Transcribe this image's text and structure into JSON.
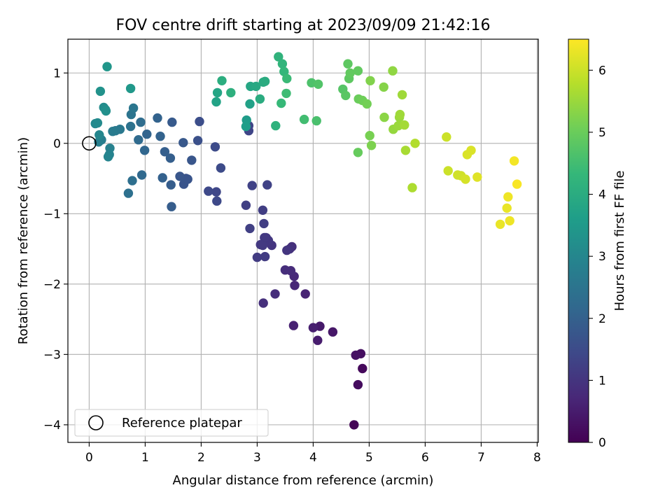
{
  "chart_data": {
    "type": "scatter",
    "title": "FOV centre drift starting at 2023/09/09 21:42:16",
    "xlabel": "Angular distance from reference (arcmin)",
    "ylabel": "Rotation from reference (arcmin)",
    "xlim": [
      -0.38,
      8.02
    ],
    "ylim": [
      -4.25,
      1.48
    ],
    "xticks": [
      0,
      1,
      2,
      3,
      4,
      5,
      6,
      7,
      8
    ],
    "xtick_labels": [
      "0",
      "1",
      "2",
      "3",
      "4",
      "5",
      "6",
      "7",
      "8"
    ],
    "yticks": [
      1,
      0,
      -1,
      -2,
      -3,
      -4
    ],
    "ytick_labels": [
      "1",
      "0",
      "−1",
      "−2",
      "−3",
      "−4"
    ],
    "grid": true,
    "colormap": "viridis",
    "colors": {
      "viridis": [
        "#440154",
        "#482878",
        "#3e4989",
        "#31688e",
        "#26828e",
        "#1f9e89",
        "#35b779",
        "#6ece58",
        "#b5de2b",
        "#fde725"
      ]
    },
    "colorbar": {
      "label": "Hours from first FF file",
      "min": 0,
      "max": 6.5,
      "ticks": [
        0,
        1,
        2,
        3,
        4,
        5,
        6
      ],
      "tick_labels": [
        "0",
        "1",
        "2",
        "3",
        "4",
        "5",
        "6"
      ]
    },
    "legend": {
      "placement": "lower-left",
      "entries": [
        "Reference platepar"
      ]
    },
    "reference_point": {
      "x": 0,
      "y": 0
    },
    "series": [
      {
        "points": [
          [
            4.73,
            -4.0,
            0.05
          ],
          [
            4.88,
            -3.2,
            0.15
          ],
          [
            4.8,
            -3.43,
            0.2
          ],
          [
            4.85,
            -2.99,
            0.25
          ],
          [
            4.76,
            -3.01,
            0.3
          ],
          [
            4.35,
            -2.68,
            0.4
          ],
          [
            4.12,
            -2.6,
            0.45
          ],
          [
            4.08,
            -2.8,
            0.5
          ],
          [
            4.0,
            -2.62,
            0.55
          ],
          [
            3.65,
            -2.59,
            0.6
          ],
          [
            3.86,
            -2.14,
            0.65
          ],
          [
            3.67,
            -2.02,
            0.7
          ],
          [
            3.66,
            -1.89,
            0.75
          ],
          [
            3.6,
            -1.81,
            0.8
          ],
          [
            3.5,
            -1.8,
            0.85
          ],
          [
            3.32,
            -2.14,
            0.85
          ],
          [
            3.11,
            -2.27,
            0.9
          ],
          [
            3.62,
            -1.47,
            0.9
          ],
          [
            3.58,
            -1.5,
            0.95
          ],
          [
            3.53,
            -1.52,
            1.0
          ],
          [
            3.26,
            -1.45,
            1.0
          ],
          [
            3.2,
            -1.38,
            1.05
          ],
          [
            3.16,
            -1.34,
            1.05
          ],
          [
            3.13,
            -1.34,
            1.1
          ],
          [
            3.1,
            -1.45,
            1.1
          ],
          [
            3.06,
            -1.44,
            1.1
          ],
          [
            3.14,
            -1.61,
            1.15
          ],
          [
            3.0,
            -1.62,
            1.15
          ],
          [
            3.12,
            -1.14,
            1.2
          ],
          [
            3.1,
            -0.95,
            1.2
          ],
          [
            2.8,
            -0.88,
            1.25
          ],
          [
            2.87,
            -1.21,
            1.25
          ],
          [
            2.91,
            -0.6,
            1.3
          ],
          [
            3.18,
            -0.59,
            1.3
          ],
          [
            2.85,
            0.18,
            1.35
          ],
          [
            2.85,
            0.25,
            1.35
          ],
          [
            2.27,
            -0.69,
            1.4
          ],
          [
            2.13,
            -0.68,
            1.45
          ],
          [
            2.28,
            -0.82,
            1.45
          ],
          [
            2.25,
            -0.05,
            1.5
          ],
          [
            2.35,
            -0.35,
            1.5
          ],
          [
            1.97,
            0.31,
            1.55
          ],
          [
            1.94,
            0.04,
            1.6
          ],
          [
            1.73,
            -0.5,
            1.65
          ],
          [
            1.69,
            -0.58,
            1.7
          ],
          [
            1.76,
            -0.51,
            1.7
          ],
          [
            1.62,
            -0.47,
            1.75
          ],
          [
            1.83,
            -0.24,
            1.75
          ],
          [
            1.68,
            0.01,
            1.8
          ],
          [
            1.48,
            0.3,
            1.85
          ],
          [
            1.47,
            -0.9,
            1.9
          ],
          [
            1.46,
            -0.59,
            1.9
          ],
          [
            1.45,
            -0.21,
            1.95
          ],
          [
            1.35,
            -0.12,
            1.95
          ],
          [
            1.31,
            -0.49,
            2.0
          ],
          [
            1.27,
            0.1,
            2.05
          ],
          [
            1.22,
            0.36,
            2.05
          ],
          [
            1.03,
            0.13,
            2.1
          ],
          [
            0.99,
            -0.1,
            2.15
          ],
          [
            0.94,
            -0.45,
            2.2
          ],
          [
            0.88,
            0.05,
            2.25
          ],
          [
            0.92,
            0.3,
            2.3
          ],
          [
            0.77,
            -0.53,
            2.35
          ],
          [
            0.7,
            -0.71,
            2.4
          ],
          [
            0.74,
            0.24,
            2.45
          ],
          [
            0.75,
            0.41,
            2.5
          ],
          [
            0.79,
            0.5,
            2.55
          ],
          [
            0.55,
            0.2,
            2.6
          ],
          [
            0.47,
            0.18,
            2.65
          ],
          [
            0.42,
            0.17,
            2.7
          ],
          [
            0.22,
            0.05,
            2.75
          ],
          [
            0.17,
            0.02,
            2.8
          ],
          [
            0.37,
            -0.07,
            2.85
          ],
          [
            0.36,
            -0.16,
            2.9
          ],
          [
            0.34,
            -0.19,
            2.95
          ],
          [
            0.18,
            0.12,
            3.0
          ],
          [
            0.11,
            0.28,
            3.05
          ],
          [
            0.15,
            0.29,
            3.1
          ],
          [
            0.26,
            0.51,
            3.15
          ],
          [
            0.29,
            0.48,
            3.2
          ],
          [
            0.3,
            0.46,
            3.25
          ],
          [
            0.2,
            0.74,
            3.3
          ],
          [
            0.32,
            1.09,
            3.4
          ],
          [
            0.74,
            0.78,
            3.45
          ],
          [
            2.81,
            0.33,
            3.55
          ],
          [
            2.8,
            0.24,
            3.6
          ],
          [
            2.87,
            0.56,
            3.7
          ],
          [
            2.27,
            0.59,
            3.75
          ],
          [
            2.29,
            0.72,
            3.8
          ],
          [
            2.88,
            0.81,
            3.85
          ],
          [
            2.98,
            0.81,
            3.9
          ],
          [
            3.11,
            0.87,
            3.95
          ],
          [
            3.14,
            0.88,
            4.0
          ],
          [
            3.05,
            0.63,
            4.0
          ],
          [
            2.37,
            0.89,
            4.05
          ],
          [
            2.53,
            0.72,
            4.1
          ],
          [
            3.33,
            0.25,
            4.15
          ],
          [
            3.38,
            1.23,
            4.2
          ],
          [
            3.45,
            1.13,
            4.25
          ],
          [
            3.48,
            1.02,
            4.3
          ],
          [
            3.43,
            0.57,
            4.35
          ],
          [
            3.53,
            0.92,
            4.4
          ],
          [
            3.52,
            0.71,
            4.45
          ],
          [
            3.84,
            0.34,
            4.5
          ],
          [
            4.06,
            0.32,
            4.6
          ],
          [
            3.97,
            0.86,
            4.65
          ],
          [
            4.09,
            0.84,
            4.7
          ],
          [
            4.53,
            0.77,
            4.75
          ],
          [
            4.58,
            0.68,
            4.8
          ],
          [
            4.62,
            1.13,
            4.85
          ],
          [
            4.64,
            0.92,
            4.85
          ],
          [
            4.66,
            1.0,
            4.9
          ],
          [
            4.8,
            1.03,
            4.9
          ],
          [
            4.8,
            -0.13,
            4.95
          ],
          [
            4.81,
            0.63,
            5.0
          ],
          [
            4.88,
            0.61,
            5.05
          ],
          [
            4.96,
            0.56,
            5.1
          ],
          [
            5.01,
            0.11,
            5.15
          ],
          [
            5.04,
            -0.03,
            5.2
          ],
          [
            5.02,
            0.89,
            5.25
          ],
          [
            5.26,
            0.8,
            5.3
          ],
          [
            5.27,
            0.37,
            5.35
          ],
          [
            5.42,
            1.03,
            5.4
          ],
          [
            5.43,
            0.2,
            5.45
          ],
          [
            5.52,
            0.25,
            5.5
          ],
          [
            5.54,
            0.37,
            5.5
          ],
          [
            5.55,
            0.41,
            5.55
          ],
          [
            5.59,
            0.69,
            5.55
          ],
          [
            5.63,
            0.26,
            5.6
          ],
          [
            5.65,
            -0.1,
            5.65
          ],
          [
            5.77,
            -0.63,
            5.7
          ],
          [
            5.82,
            0.0,
            5.75
          ],
          [
            6.38,
            0.09,
            6.0
          ],
          [
            6.41,
            -0.39,
            6.0
          ],
          [
            6.58,
            -0.45,
            6.05
          ],
          [
            6.64,
            -0.46,
            6.05
          ],
          [
            6.72,
            -0.51,
            6.1
          ],
          [
            6.75,
            -0.16,
            6.15
          ],
          [
            6.82,
            -0.1,
            6.15
          ],
          [
            6.93,
            -0.48,
            6.2
          ],
          [
            7.34,
            -1.15,
            6.3
          ],
          [
            7.46,
            -0.92,
            6.3
          ],
          [
            7.48,
            -0.76,
            6.35
          ],
          [
            7.51,
            -1.1,
            6.35
          ],
          [
            7.59,
            -0.25,
            6.4
          ],
          [
            7.64,
            -0.58,
            6.45
          ]
        ]
      }
    ]
  }
}
